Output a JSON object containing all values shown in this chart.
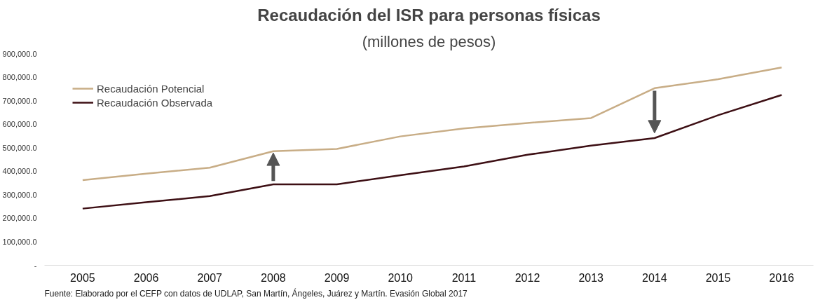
{
  "chart_data": {
    "type": "line",
    "title": "Recaudación del ISR para personas físicas",
    "subtitle": "(millones de pesos)",
    "categories": [
      "2005",
      "2006",
      "2007",
      "2008",
      "2009",
      "2010",
      "2011",
      "2012",
      "2013",
      "2014",
      "2015",
      "2016"
    ],
    "series": [
      {
        "name": "Recaudación Potencial",
        "color": "#c8ad86",
        "values": [
          362000,
          390000,
          415000,
          485000,
          495000,
          548000,
          582000,
          605000,
          626000,
          753000,
          791000,
          841000
        ]
      },
      {
        "name": "Recaudación Observada",
        "color": "#3d0f14",
        "values": [
          241000,
          268000,
          294000,
          344000,
          344000,
          383000,
          420000,
          470000,
          509000,
          541000,
          638000,
          724000
        ]
      }
    ],
    "ylim": [
      0,
      900000
    ],
    "yticks": [
      {
        "value": 0,
        "label": "-"
      },
      {
        "value": 100000,
        "label": "100,000.0"
      },
      {
        "value": 200000,
        "label": "200,000.0"
      },
      {
        "value": 300000,
        "label": "300,000.0"
      },
      {
        "value": 400000,
        "label": "400,000.0"
      },
      {
        "value": 500000,
        "label": "500,000.0"
      },
      {
        "value": 600000,
        "label": "600,000.0"
      },
      {
        "value": 700000,
        "label": "700,000.0"
      },
      {
        "value": 800000,
        "label": "800,000.0"
      },
      {
        "value": 900000,
        "label": "900,000.0"
      }
    ],
    "grid": false,
    "legend": "top left",
    "marker": "none",
    "line_style": "solid",
    "annotations": [
      "Fuente: Elaborado por el CEFP con datos de UDLAP, San Martín, Ángeles, Juárez y Martín. Evasión Global 2017"
    ]
  }
}
